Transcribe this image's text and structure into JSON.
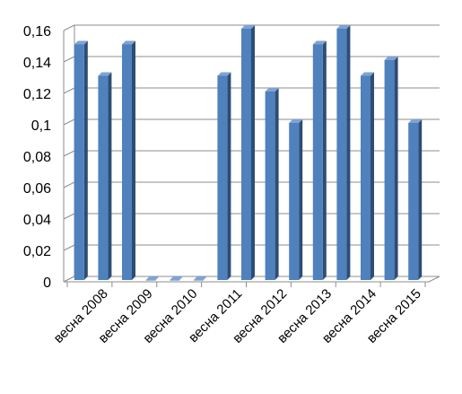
{
  "chart_data": {
    "type": "bar",
    "title": "",
    "xlabel": "",
    "ylabel": "",
    "ylim": [
      0,
      0.16
    ],
    "y_ticks": [
      0,
      0.02,
      0.04,
      0.06,
      0.08,
      0.1,
      0.12,
      0.14,
      0.16
    ],
    "y_tick_labels": [
      "0",
      "0,02",
      "0,04",
      "0,06",
      "0,08",
      "0,1",
      "0,12",
      "0,14",
      "0,16"
    ],
    "grid": true,
    "style": "3d-column",
    "bar_color": "#4f81bd",
    "bar_side_color": "#2c4d75",
    "bar_top_color": "#7ea3d4",
    "x_labels": [
      "весна 2008",
      "весна 2009",
      "весна 2010",
      "весна 2011",
      "весна 2012",
      "весна 2013",
      "весна 2014",
      "весна 2015"
    ],
    "values": [
      0.15,
      0.13,
      0.15,
      0,
      0,
      0,
      0.13,
      0.16,
      0.12,
      0.1,
      0.15,
      0.16,
      0.13,
      0.14,
      0.1
    ]
  }
}
